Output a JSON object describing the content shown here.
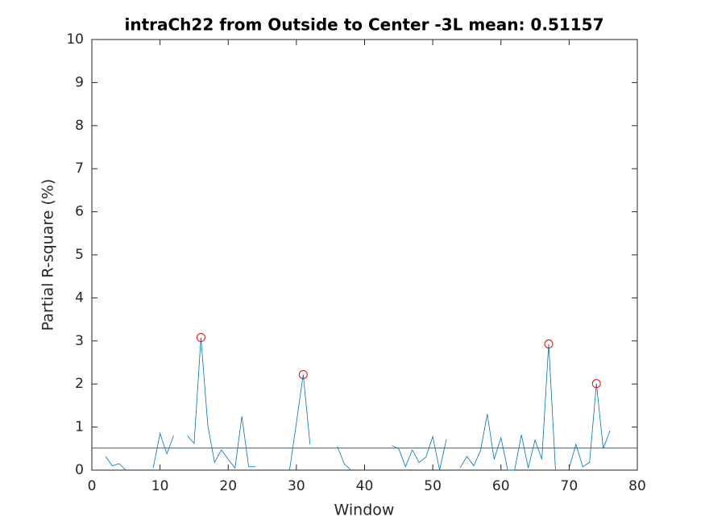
{
  "chart_data": {
    "type": "line",
    "title": "intraCh22 from Outside to Center -3L mean: 0.51157",
    "xlabel": "Window",
    "ylabel": "Partial R-square (%)",
    "x": [
      2,
      3,
      4,
      5,
      6,
      7,
      8,
      9,
      10,
      11,
      12,
      13,
      14,
      15,
      16,
      17,
      18,
      19,
      20,
      21,
      22,
      23,
      24,
      25,
      26,
      27,
      28,
      29,
      30,
      31,
      32,
      33,
      34,
      35,
      36,
      37,
      38,
      39,
      40,
      41,
      42,
      43,
      44,
      45,
      46,
      47,
      48,
      49,
      50,
      51,
      52,
      53,
      54,
      55,
      56,
      57,
      58,
      59,
      60,
      61,
      62,
      63,
      64,
      65,
      66,
      67,
      68,
      69,
      70,
      71,
      72,
      73,
      74,
      75,
      76
    ],
    "series": [
      {
        "color": "#0072bd",
        "values": [
          0.32,
          0.1,
          0.15,
          0,
          null,
          null,
          null,
          0.05,
          0.85,
          0.38,
          0.8,
          null,
          0.8,
          0.62,
          3.08,
          1.05,
          0.18,
          0.47,
          0.25,
          0.05,
          1.25,
          0.08,
          0.08,
          null,
          null,
          null,
          null,
          0,
          1.1,
          2.22,
          0.6,
          null,
          null,
          null,
          0.55,
          0.15,
          0,
          null,
          null,
          null,
          null,
          null,
          0.57,
          0.5,
          0.08,
          0.47,
          0.18,
          0.3,
          0.78,
          0,
          0.72,
          null,
          0.05,
          0.32,
          0.1,
          0.45,
          1.3,
          0.25,
          0.75,
          0,
          0,
          0.82,
          0.05,
          0.7,
          0.25,
          2.93,
          0,
          null,
          0.05,
          0.6,
          0.08,
          0.18,
          2.01,
          0.5,
          0.92
        ]
      }
    ],
    "peaks": {
      "color": "#ff0000",
      "x": [
        16,
        31,
        67,
        74
      ],
      "values": [
        3.08,
        2.22,
        2.93,
        2.01
      ]
    },
    "mean_line": {
      "color": "#0072bd",
      "value": 0.51157
    },
    "xlim": [
      0,
      80
    ],
    "xticks": [
      0,
      10,
      20,
      30,
      40,
      50,
      60,
      70,
      80
    ],
    "ylim": [
      0,
      10
    ],
    "yticks": [
      0,
      1,
      2,
      3,
      4,
      5,
      6,
      7,
      8,
      9,
      10
    ]
  }
}
